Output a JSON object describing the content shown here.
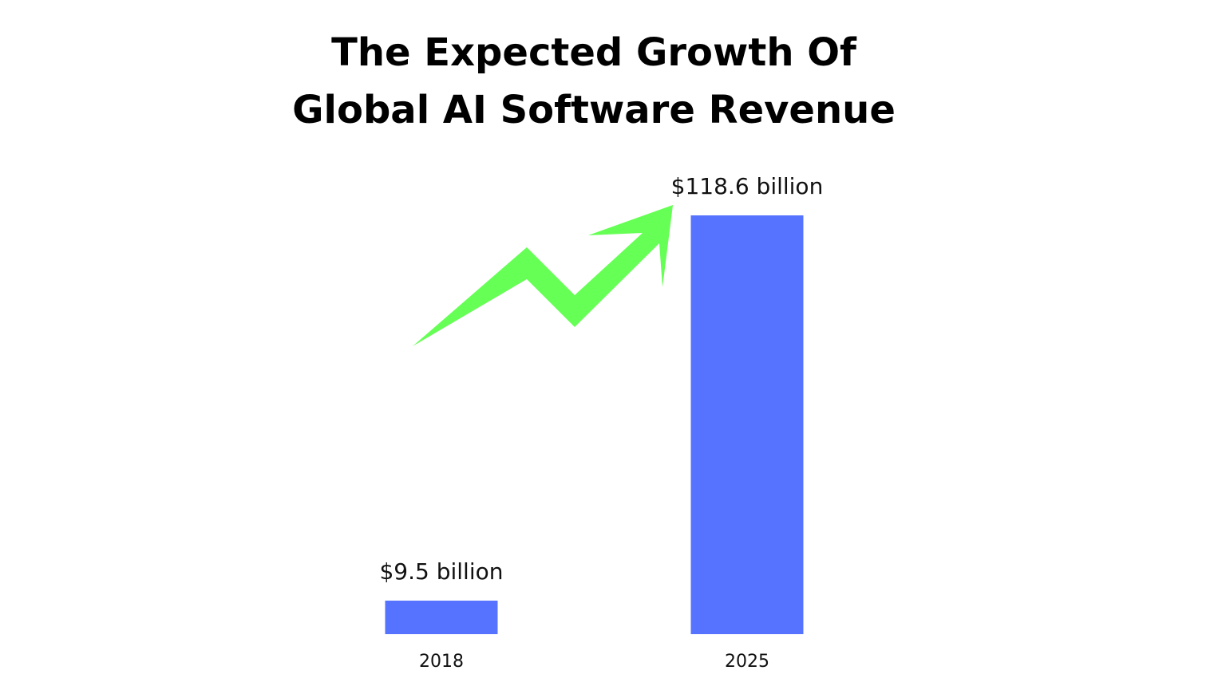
{
  "chart_data": {
    "type": "bar",
    "title_lines": [
      "The Expected Growth Of",
      "Global AI Software Revenue"
    ],
    "categories": [
      "2018",
      "2025"
    ],
    "values": [
      9.5,
      118.6
    ],
    "value_labels": [
      "$9.5 billion",
      "$118.6 billion"
    ],
    "bar_color": "#5573ff",
    "arrow_color": "#66ff55",
    "grid": false
  }
}
